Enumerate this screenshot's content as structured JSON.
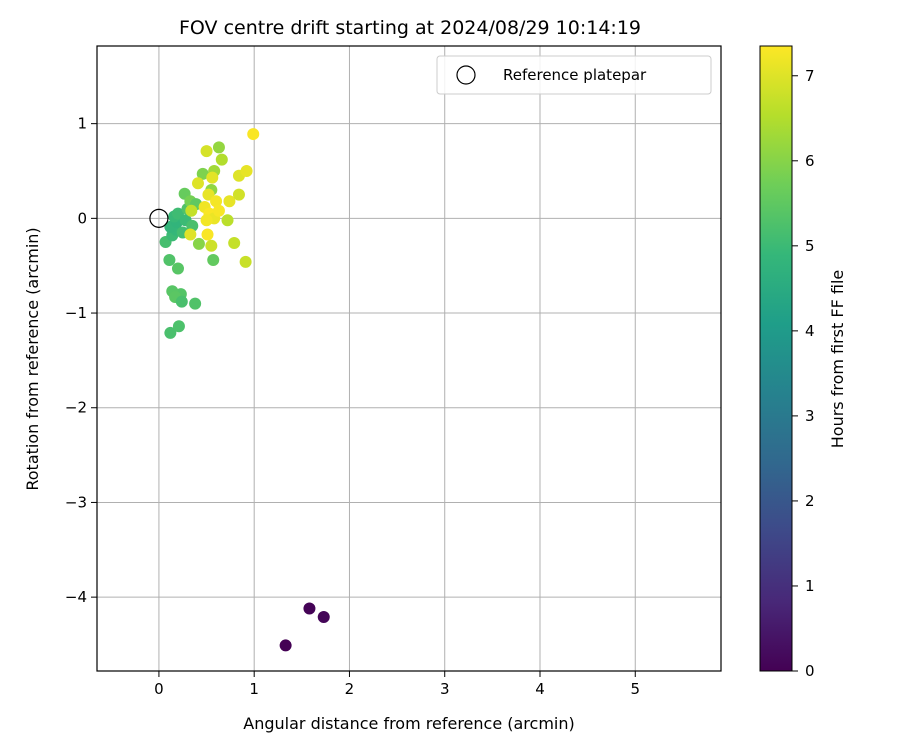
{
  "chart_data": {
    "type": "scatter",
    "title": "FOV centre drift starting at 2024/08/29 10:14:19",
    "xlabel": "Angular distance from reference (arcmin)",
    "ylabel": "Rotation from reference (arcmin)",
    "xlim": [
      -0.65,
      5.9
    ],
    "ylim": [
      -4.78,
      1.82
    ],
    "xticks": [
      0,
      1,
      2,
      3,
      4,
      5
    ],
    "yticks": [
      1,
      0,
      -1,
      -2,
      -3,
      -4
    ],
    "xtick_labels": [
      "0",
      "1",
      "2",
      "3",
      "4",
      "5"
    ],
    "ytick_labels": [
      "1",
      "0",
      "−1",
      "−2",
      "−3",
      "−4"
    ],
    "grid": true,
    "legend": {
      "placement": "top-right",
      "entries": [
        "Reference platepar"
      ]
    },
    "reference_point": {
      "x": 0,
      "y": 0,
      "label": "Reference platepar"
    },
    "colorbar": {
      "label": "Hours from first FF file",
      "range": [
        0,
        7.35
      ],
      "ticks": [
        0,
        1,
        2,
        3,
        4,
        5,
        6,
        7
      ],
      "tick_labels": [
        "0",
        "1",
        "2",
        "3",
        "4",
        "5",
        "6",
        "7"
      ],
      "colormap": "viridis"
    },
    "colormap_stops": [
      "#440154",
      "#482878",
      "#3e4989",
      "#31688e",
      "#26828e",
      "#1f9e89",
      "#35b779",
      "#6ece58",
      "#b5de2b",
      "#fde725"
    ],
    "points": [
      {
        "x": 1.33,
        "y": -4.51,
        "h": 0.0
      },
      {
        "x": 1.58,
        "y": -4.12,
        "h": 0.05
      },
      {
        "x": 1.73,
        "y": -4.21,
        "h": 0.1
      },
      {
        "x": 0.12,
        "y": -1.21,
        "h": 5.2
      },
      {
        "x": 0.21,
        "y": -1.14,
        "h": 5.25
      },
      {
        "x": 0.38,
        "y": -0.9,
        "h": 5.3
      },
      {
        "x": 0.23,
        "y": -0.8,
        "h": 5.35
      },
      {
        "x": 0.14,
        "y": -0.77,
        "h": 5.4
      },
      {
        "x": 0.17,
        "y": -0.83,
        "h": 5.45
      },
      {
        "x": 0.24,
        "y": -0.88,
        "h": 5.2
      },
      {
        "x": 0.11,
        "y": -0.44,
        "h": 5.3
      },
      {
        "x": 0.2,
        "y": -0.53,
        "h": 5.4
      },
      {
        "x": 0.57,
        "y": -0.44,
        "h": 5.55
      },
      {
        "x": 0.07,
        "y": -0.25,
        "h": 5.15
      },
      {
        "x": 0.14,
        "y": -0.18,
        "h": 5.0
      },
      {
        "x": 0.18,
        "y": -0.12,
        "h": 4.9
      },
      {
        "x": 0.12,
        "y": -0.09,
        "h": 4.85
      },
      {
        "x": 0.19,
        "y": -0.04,
        "h": 4.8
      },
      {
        "x": 0.16,
        "y": 0.02,
        "h": 4.95
      },
      {
        "x": 0.2,
        "y": 0.05,
        "h": 5.05
      },
      {
        "x": 0.25,
        "y": -0.15,
        "h": 5.1
      },
      {
        "x": 0.28,
        "y": -0.02,
        "h": 5.0
      },
      {
        "x": 0.3,
        "y": 0.1,
        "h": 5.3
      },
      {
        "x": 0.35,
        "y": -0.08,
        "h": 5.2
      },
      {
        "x": 0.27,
        "y": 0.26,
        "h": 5.6
      },
      {
        "x": 0.33,
        "y": 0.18,
        "h": 5.8
      },
      {
        "x": 0.39,
        "y": 0.15,
        "h": 5.5
      },
      {
        "x": 0.42,
        "y": -0.27,
        "h": 6.0
      },
      {
        "x": 0.46,
        "y": 0.47,
        "h": 5.9
      },
      {
        "x": 0.55,
        "y": 0.3,
        "h": 6.1
      },
      {
        "x": 0.58,
        "y": 0.5,
        "h": 6.3
      },
      {
        "x": 0.63,
        "y": 0.75,
        "h": 6.15
      },
      {
        "x": 0.66,
        "y": 0.62,
        "h": 6.5
      },
      {
        "x": 0.5,
        "y": 0.71,
        "h": 6.9
      },
      {
        "x": 0.41,
        "y": 0.37,
        "h": 7.0
      },
      {
        "x": 0.56,
        "y": 0.43,
        "h": 7.05
      },
      {
        "x": 0.52,
        "y": 0.25,
        "h": 7.1
      },
      {
        "x": 0.48,
        "y": 0.12,
        "h": 7.2
      },
      {
        "x": 0.6,
        "y": 0.18,
        "h": 7.25
      },
      {
        "x": 0.53,
        "y": 0.05,
        "h": 7.3
      },
      {
        "x": 0.58,
        "y": 0.0,
        "h": 7.15
      },
      {
        "x": 0.63,
        "y": 0.08,
        "h": 7.28
      },
      {
        "x": 0.5,
        "y": -0.02,
        "h": 7.22
      },
      {
        "x": 0.51,
        "y": -0.17,
        "h": 7.3
      },
      {
        "x": 0.55,
        "y": -0.29,
        "h": 6.8
      },
      {
        "x": 0.33,
        "y": -0.17,
        "h": 7.0
      },
      {
        "x": 0.34,
        "y": 0.08,
        "h": 6.7
      },
      {
        "x": 0.72,
        "y": -0.02,
        "h": 6.6
      },
      {
        "x": 0.74,
        "y": 0.18,
        "h": 7.1
      },
      {
        "x": 0.79,
        "y": -0.26,
        "h": 6.7
      },
      {
        "x": 0.84,
        "y": 0.25,
        "h": 6.85
      },
      {
        "x": 0.84,
        "y": 0.45,
        "h": 7.0
      },
      {
        "x": 0.92,
        "y": 0.5,
        "h": 7.1
      },
      {
        "x": 0.91,
        "y": -0.46,
        "h": 6.75
      },
      {
        "x": 0.99,
        "y": 0.89,
        "h": 7.3
      }
    ]
  }
}
